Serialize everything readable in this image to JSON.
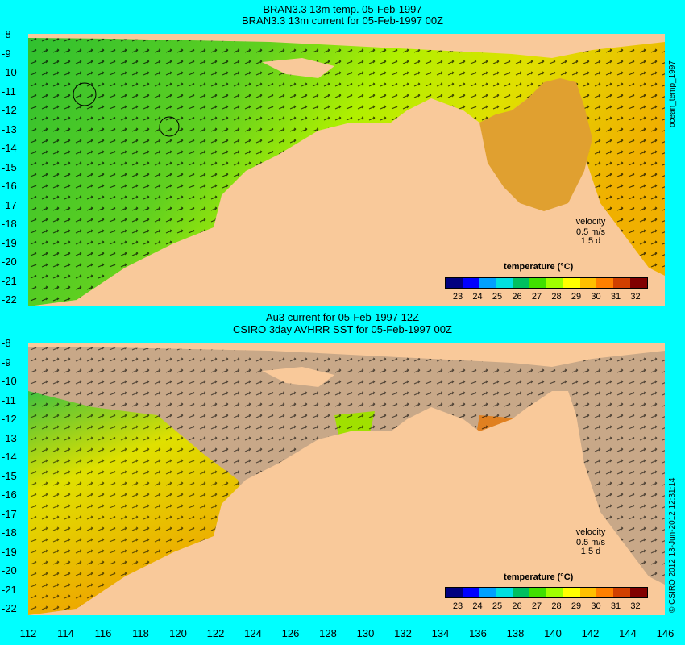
{
  "top_panel": {
    "title_line1": "BRAN3.3 13m temp. 05-Feb-1997",
    "title_line2": "BRAN3.3 13m current for 05-Feb-1997 00Z",
    "side_label": "ocean_temp_1997"
  },
  "bottom_panel": {
    "title_line1": "Au3 current for 05-Feb-1997 12Z",
    "title_line2": "CSIRO 3day AVHRR SST for 05-Feb-1997 00Z",
    "side_label": "© CSIRO 2012  13-Jun-2012 12:31:14"
  },
  "legend": {
    "title": "temperature (°C)",
    "ticks": [
      "23",
      "24",
      "25",
      "26",
      "27",
      "28",
      "29",
      "30",
      "31",
      "32"
    ],
    "velocity_label": "velocity",
    "velocity_value": "0.5 m/s",
    "velocity_time": "1.5 d"
  },
  "axes": {
    "y_ticks": [
      "-8",
      "-9",
      "-10",
      "-11",
      "-12",
      "-13",
      "-14",
      "-15",
      "-16",
      "-17",
      "-18",
      "-19",
      "-20",
      "-21",
      "-22"
    ],
    "x_ticks": [
      "112",
      "114",
      "116",
      "118",
      "120",
      "122",
      "124",
      "126",
      "128",
      "130",
      "132",
      "134",
      "136",
      "138",
      "140",
      "142",
      "144",
      "146"
    ]
  },
  "colors": {
    "background": "#00ffff",
    "land": "#f9c99a",
    "cloud_mask": "#c8a888",
    "colorbar": [
      "#00007f",
      "#0000ff",
      "#00a0ff",
      "#00e0e0",
      "#00c060",
      "#40e000",
      "#a0ff00",
      "#ffff00",
      "#ffc000",
      "#ff8000",
      "#d04000",
      "#800000"
    ]
  }
}
